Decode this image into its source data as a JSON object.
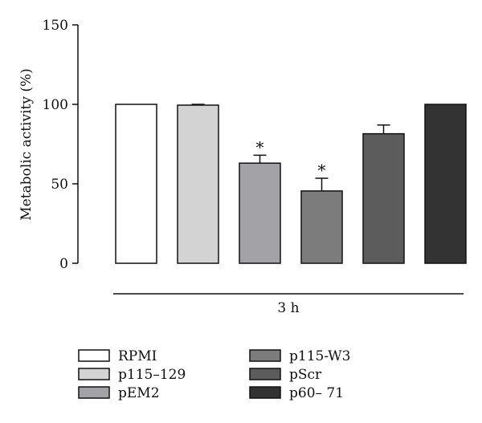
{
  "chart_data": {
    "type": "bar",
    "ylabel": "Metabolic activity (%)",
    "group_label": "3 h",
    "ylim": [
      0,
      150
    ],
    "yticks": [
      0,
      50,
      100,
      150
    ],
    "grid": false,
    "legend_placement": "bottom",
    "series": [
      {
        "name": "RPMI",
        "value": 100,
        "error": 0,
        "significant": false,
        "color": "#ffffff"
      },
      {
        "name": "p115–129",
        "value": 99.5,
        "error": 0.5,
        "significant": false,
        "color": "#d3d3d3"
      },
      {
        "name": "pEM2",
        "value": 63,
        "error": 5,
        "significant": true,
        "color": "#a3a3a7"
      },
      {
        "name": "p115-W3",
        "value": 45.5,
        "error": 8,
        "significant": true,
        "color": "#7c7c7c"
      },
      {
        "name": "pScr",
        "value": 81.5,
        "error": 5.5,
        "significant": false,
        "color": "#5c5c5c"
      },
      {
        "name": "p60– 71",
        "value": 100,
        "error": 0,
        "significant": false,
        "color": "#333333"
      }
    ],
    "significance_marker": "*"
  }
}
